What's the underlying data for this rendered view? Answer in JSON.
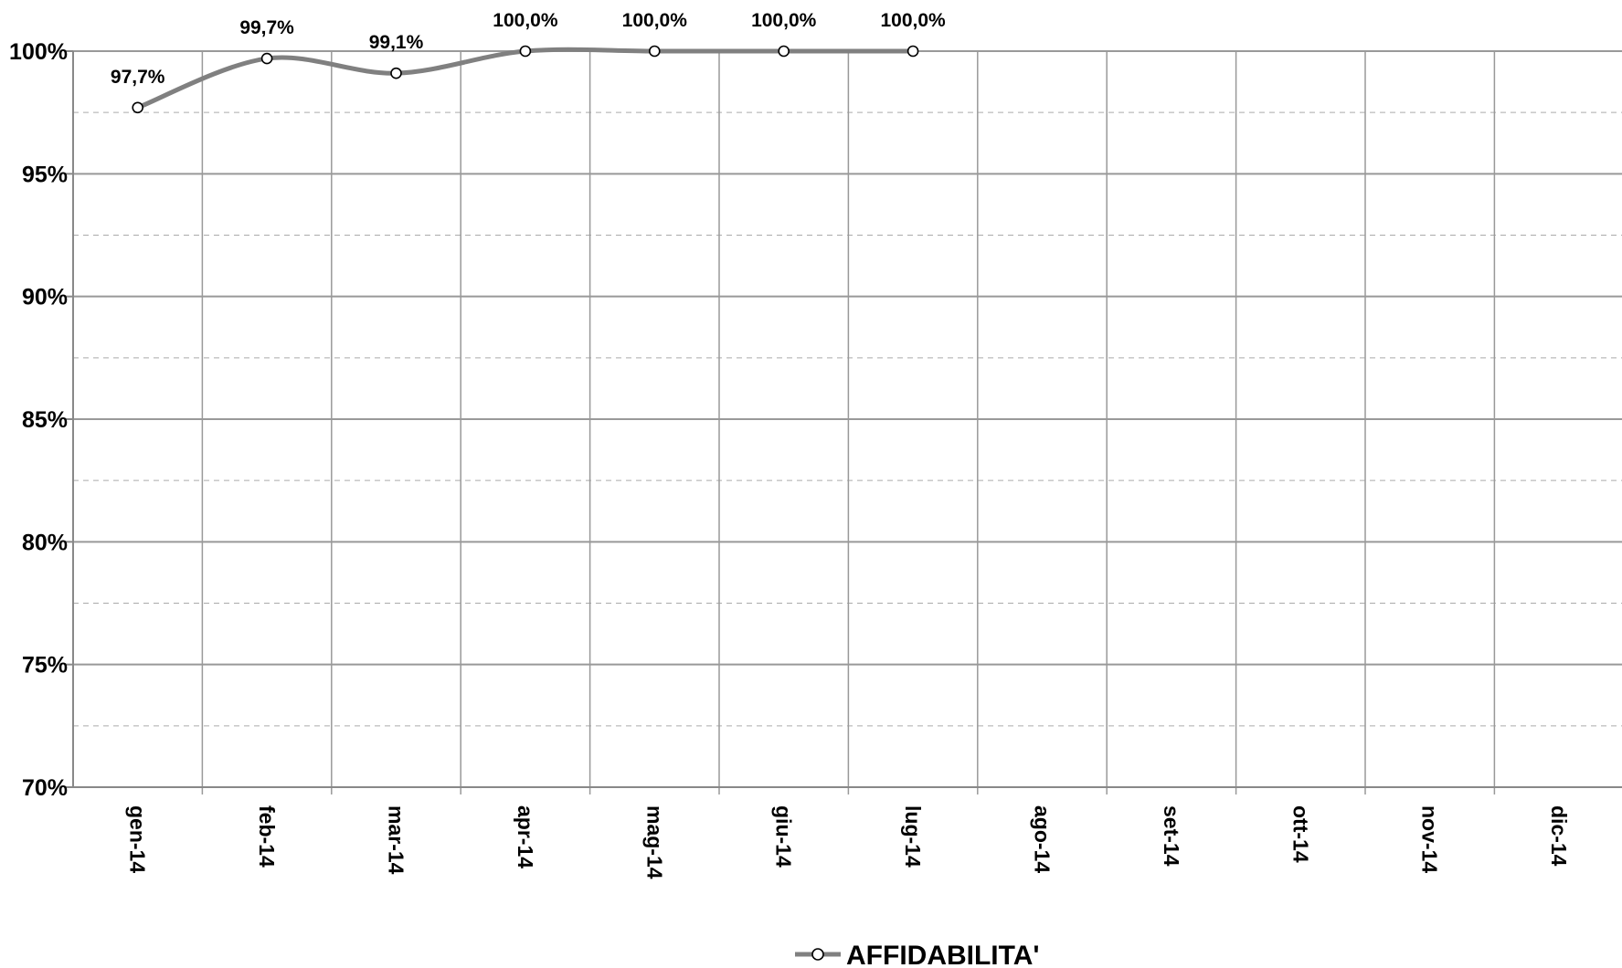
{
  "chart_data": {
    "type": "line",
    "categories": [
      "gen-14",
      "feb-14",
      "mar-14",
      "apr-14",
      "mag-14",
      "giu-14",
      "lug-14",
      "ago-14",
      "set-14",
      "ott-14",
      "nov-14",
      "dic-14"
    ],
    "series": [
      {
        "name": "AFFIDABILITA'",
        "values": [
          97.7,
          99.7,
          99.1,
          100.0,
          100.0,
          100.0,
          100.0,
          null,
          null,
          null,
          null,
          null
        ],
        "data_labels": [
          "97,7%",
          "99,7%",
          "99,1%",
          "100,0%",
          "100,0%",
          "100,0%",
          "100,0%"
        ],
        "color": "#808080",
        "smooth": true,
        "marker": "open-circle"
      }
    ],
    "ylim": [
      70,
      100
    ],
    "yticks": [
      70,
      75,
      80,
      85,
      90,
      95,
      100
    ],
    "ytick_labels": [
      "70%",
      "75%",
      "80%",
      "85%",
      "90%",
      "95%",
      "100%"
    ],
    "minor_grid_values": [
      72.5,
      77.5,
      82.5,
      87.5,
      92.5,
      97.5
    ],
    "major_grid": true,
    "minor_grid": "dashed",
    "vertical_grid": true,
    "xtick_rotation": "vertical",
    "legend_position": "bottom-center",
    "grid_color": "#999999",
    "minor_grid_color": "#aaaaaa"
  }
}
